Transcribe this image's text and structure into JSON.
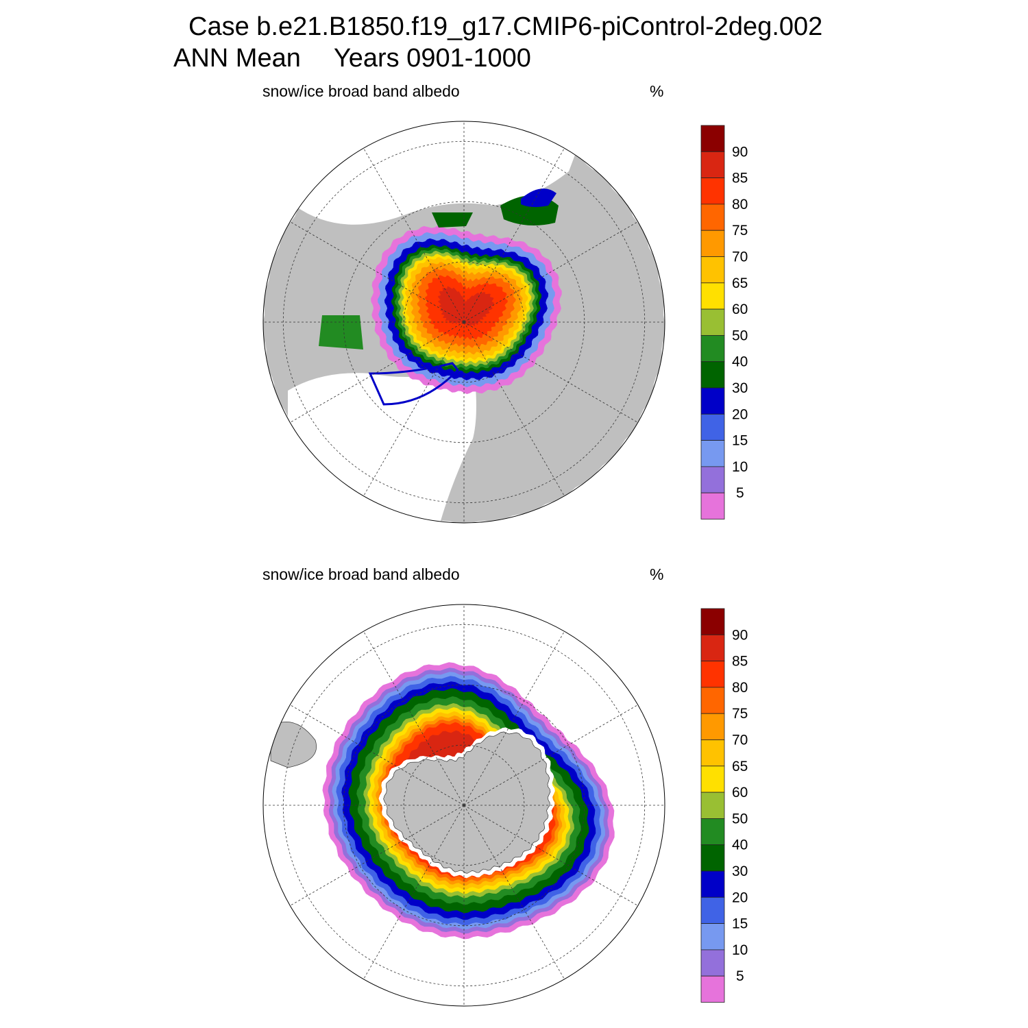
{
  "header": {
    "title_line1": "Case b.e21.B1850.f19_g17.CMIP6-piControl-2deg.002",
    "title_line2_left": "ANN Mean",
    "title_line2_right": "Years 0901-1000"
  },
  "chart_data": [
    {
      "type": "heatmap",
      "projection": "north-polar-stereographic",
      "title": "snow/ice broad band albedo",
      "units": "%",
      "levels": [
        5,
        10,
        15,
        20,
        30,
        40,
        50,
        60,
        65,
        70,
        75,
        80,
        85,
        90
      ],
      "level_labels": [
        "90",
        "85",
        "80",
        "75",
        "70",
        "65",
        "60",
        "50",
        "40",
        "30",
        "20",
        "15",
        "10",
        "5"
      ],
      "colors": [
        "#8B0000",
        "#D92612",
        "#FF3300",
        "#FF6600",
        "#FF9900",
        "#FFC200",
        "#FFE000",
        "#99BF33",
        "#228B22",
        "#006400",
        "#0000C8",
        "#4063E6",
        "#7799F0",
        "#9370DB",
        "#E673DB"
      ],
      "grid": true
    },
    {
      "type": "heatmap",
      "projection": "south-polar-stereographic",
      "title": "snow/ice broad band albedo",
      "units": "%",
      "levels": [
        5,
        10,
        15,
        20,
        30,
        40,
        50,
        60,
        65,
        70,
        75,
        80,
        85,
        90
      ],
      "level_labels": [
        "90",
        "85",
        "80",
        "75",
        "70",
        "65",
        "60",
        "50",
        "40",
        "30",
        "20",
        "15",
        "10",
        "5"
      ],
      "colors": [
        "#8B0000",
        "#D92612",
        "#FF3300",
        "#FF6600",
        "#FF9900",
        "#FFC200",
        "#FFE000",
        "#99BF33",
        "#228B22",
        "#006400",
        "#0000C8",
        "#4063E6",
        "#7799F0",
        "#9370DB",
        "#E673DB"
      ],
      "grid": true
    }
  ]
}
